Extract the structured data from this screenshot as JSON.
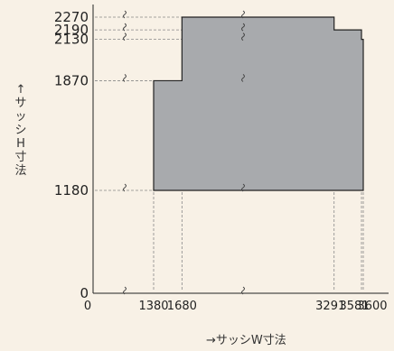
{
  "chart_data": {
    "type": "area",
    "title": "",
    "ylabel_chars": [
      "↑",
      "サ",
      "ッ",
      "シ",
      "H",
      "寸",
      "法"
    ],
    "xlabel": "→サッシW寸法",
    "y_ticks": [
      "2270",
      "2190",
      "2130",
      "1870",
      "1180",
      "0"
    ],
    "x_ticks": [
      "0",
      "1380",
      "1680",
      "3291",
      "3581",
      "3600"
    ],
    "outline": [
      {
        "x": 1380,
        "y": 1180
      },
      {
        "x": 1380,
        "y": 1870
      },
      {
        "x": 1680,
        "y": 1870
      },
      {
        "x": 1680,
        "y": 2270
      },
      {
        "x": 3291,
        "y": 2270
      },
      {
        "x": 3291,
        "y": 2190
      },
      {
        "x": 3581,
        "y": 2190
      },
      {
        "x": 3581,
        "y": 2130
      },
      {
        "x": 3600,
        "y": 2130
      },
      {
        "x": 3600,
        "y": 1180
      }
    ],
    "axis_breaks": [
      "x",
      "y"
    ],
    "fill_color": "#a8aaad",
    "line_color": "#222222",
    "guide_color": "#888888"
  }
}
